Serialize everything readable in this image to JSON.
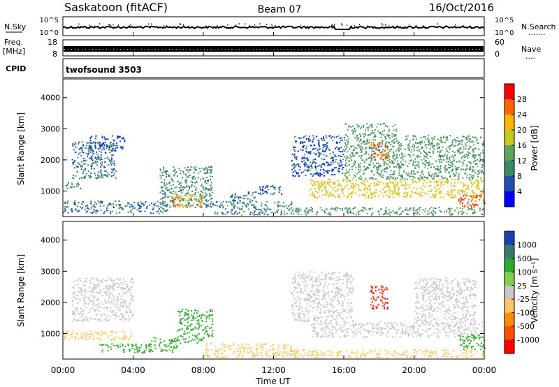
{
  "header": {
    "station": "Saskatoon (fitACF)",
    "beam": "Beam 07",
    "date": "16/Oct/2016"
  },
  "noise_panel": {
    "left_label": "N.Sky",
    "left_ticks": [
      "10^5",
      "10^0"
    ],
    "right_ticks": [
      "10^5",
      "10^0"
    ],
    "right_label": "N.Search",
    "right_dots": "......."
  },
  "freq_panel": {
    "left_label_1": "Freq.",
    "left_label_2": "[MHz]",
    "left_ticks": [
      "18",
      "8"
    ],
    "right_ticks": [
      "60",
      "0"
    ],
    "right_label": "Nave",
    "right_dots": "...."
  },
  "cpid_panel": {
    "label": "CPID",
    "mode": "twofsound 3503"
  },
  "power_panel": {
    "ylabel": "Slant Range [km]",
    "y_ticks": [
      "4000",
      "3000",
      "2000",
      "1000"
    ],
    "colorbar_label": "Power [dB]",
    "colorbar_ticks": [
      "28",
      "24",
      "20",
      "16",
      "12",
      "8",
      "4"
    ]
  },
  "velocity_panel": {
    "ylabel": "Slant Range [km]",
    "y_ticks": [
      "4000",
      "3000",
      "2000",
      "1000"
    ],
    "colorbar_label": "Velocity [m s⁻¹]",
    "colorbar_ticks": [
      "1000",
      "500",
      "100",
      "25",
      "-25",
      "-100",
      "-500",
      "-1000"
    ]
  },
  "x_axis": {
    "label": "Time UT",
    "ticks": [
      "00:00",
      "04:00",
      "08:00",
      "12:00",
      "16:00",
      "20:00",
      "00:00"
    ]
  },
  "colors": {
    "power_scale": [
      "#0000ff",
      "#1f4fb0",
      "#3a8a6a",
      "#5aa55a",
      "#c8c81e",
      "#ffb400",
      "#ff6400",
      "#ff0000"
    ],
    "velocity_scale": [
      "#1f3fb0",
      "#3a7a6a",
      "#2fa82f",
      "#7fd24f",
      "#c8c8c8",
      "#ffc864",
      "#ff8c00",
      "#ff5000",
      "#ff0000"
    ]
  },
  "chart_data": [
    {
      "type": "heatmap",
      "title": "",
      "xlabel": "",
      "ylabel": "Slant Range [km]",
      "xlim": [
        0,
        24
      ],
      "ylim": [
        180,
        4600
      ],
      "quantity": "Power [dB]",
      "colorbar_range": [
        0,
        32
      ],
      "regions": [
        {
          "t0": 0.0,
          "t1": 1.0,
          "r0": 1100,
          "r1": 1300,
          "level": 10
        },
        {
          "t0": 0.5,
          "t1": 3.0,
          "r0": 1400,
          "r1": 2600,
          "level": 8
        },
        {
          "t0": 1.5,
          "t1": 3.5,
          "r0": 2300,
          "r1": 2800,
          "level": 6
        },
        {
          "t0": 0.0,
          "t1": 6.0,
          "r0": 300,
          "r1": 700,
          "level": 8
        },
        {
          "t0": 5.5,
          "t1": 8.5,
          "r0": 500,
          "r1": 1800,
          "level": 10
        },
        {
          "t0": 6.0,
          "t1": 8.0,
          "r0": 500,
          "r1": 900,
          "level": 22
        },
        {
          "t0": 8.5,
          "t1": 13.0,
          "r0": 250,
          "r1": 700,
          "level": 10
        },
        {
          "t0": 9.5,
          "t1": 11.0,
          "r0": 700,
          "r1": 1000,
          "level": 8
        },
        {
          "t0": 11.0,
          "t1": 12.5,
          "r0": 900,
          "r1": 1200,
          "level": 6
        },
        {
          "t0": 13.0,
          "t1": 24.0,
          "r0": 250,
          "r1": 500,
          "level": 12
        },
        {
          "t0": 13.0,
          "t1": 16.0,
          "r0": 1500,
          "r1": 2800,
          "level": 6
        },
        {
          "t0": 14.0,
          "t1": 24.0,
          "r0": 800,
          "r1": 1400,
          "level": 20
        },
        {
          "t0": 16.0,
          "t1": 19.0,
          "r0": 1400,
          "r1": 3200,
          "level": 12
        },
        {
          "t0": 17.5,
          "t1": 18.5,
          "r0": 2000,
          "r1": 2600,
          "level": 26
        },
        {
          "t0": 19.0,
          "t1": 24.0,
          "r0": 1400,
          "r1": 2800,
          "level": 12
        },
        {
          "t0": 22.5,
          "t1": 24.0,
          "r0": 500,
          "r1": 900,
          "level": 28
        }
      ]
    },
    {
      "type": "heatmap",
      "title": "",
      "xlabel": "Time UT",
      "ylabel": "Slant Range [km]",
      "xlim": [
        0,
        24
      ],
      "ylim": [
        180,
        4600
      ],
      "quantity": "Velocity [m s-1]",
      "colorbar_range": [
        -1000,
        1000
      ],
      "regions": [
        {
          "t0": 0.5,
          "t1": 4.0,
          "r0": 1400,
          "r1": 2800,
          "level": 0
        },
        {
          "t0": 0.0,
          "t1": 4.0,
          "r0": 800,
          "r1": 1100,
          "level": -60
        },
        {
          "t0": 2.0,
          "t1": 6.5,
          "r0": 400,
          "r1": 700,
          "level": 60
        },
        {
          "t0": 5.0,
          "t1": 8.0,
          "r0": 700,
          "r1": 900,
          "level": 80
        },
        {
          "t0": 6.5,
          "t1": 8.5,
          "r0": 900,
          "r1": 1800,
          "level": 80
        },
        {
          "t0": 8.0,
          "t1": 13.0,
          "r0": 250,
          "r1": 700,
          "level": -40
        },
        {
          "t0": 13.0,
          "t1": 24.0,
          "r0": 250,
          "r1": 500,
          "level": -60
        },
        {
          "t0": 14.0,
          "t1": 24.0,
          "r0": 900,
          "r1": 1400,
          "level": 0
        },
        {
          "t0": 13.0,
          "t1": 16.5,
          "r0": 1400,
          "r1": 3000,
          "level": 0
        },
        {
          "t0": 17.5,
          "t1": 18.5,
          "r0": 1800,
          "r1": 2600,
          "level": -900
        },
        {
          "t0": 20.0,
          "t1": 23.5,
          "r0": 1400,
          "r1": 2800,
          "level": 0
        },
        {
          "t0": 22.5,
          "t1": 24.0,
          "r0": 500,
          "r1": 1000,
          "level": 80
        }
      ]
    }
  ]
}
